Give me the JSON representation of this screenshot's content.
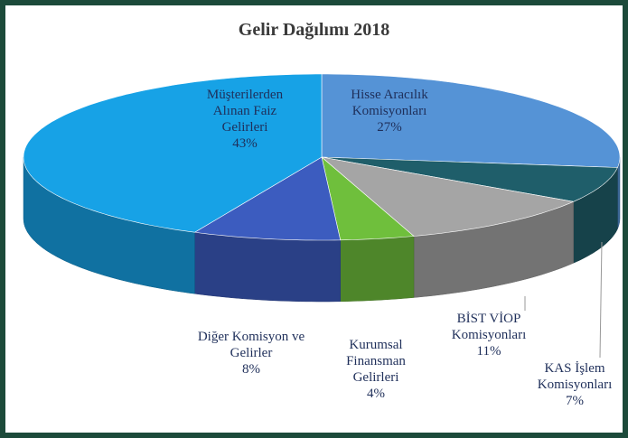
{
  "chart_data": {
    "type": "pie3d",
    "title": "Gelir Dağılımı 2018",
    "categories": [
      "Hisse Aracılık Komisyonları",
      "KAS İşlem Komisyonları",
      "BİST VİOP Komisyonları",
      "Kurumsal Finansman Gelirleri",
      "Diğer Komisyon ve Gelirler",
      "Müşterilerden Alınan Faiz Gelirleri"
    ],
    "values": [
      27,
      7,
      11,
      4,
      8,
      43
    ],
    "value_labels": [
      "27%",
      "7%",
      "11%",
      "4%",
      "8%",
      "43%"
    ],
    "colors": [
      "#5593d6",
      "#1f5e6a",
      "#a5a5a5",
      "#6fbf3c",
      "#3c5cbf",
      "#17a2e6"
    ]
  }
}
